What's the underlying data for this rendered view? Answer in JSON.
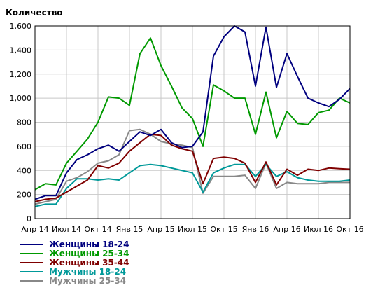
{
  "chart_data": {
    "type": "line",
    "title": "",
    "ylabel": "Количество",
    "xlabel": "",
    "ylim": [
      0,
      1600
    ],
    "yticks": [
      0,
      200,
      400,
      600,
      800,
      1000,
      1200,
      1400,
      1600
    ],
    "ytick_labels": [
      "0",
      "200",
      "400",
      "600",
      "800",
      "1,000",
      "1,200",
      "1,400",
      "1,600"
    ],
    "xtick_labels": [
      "Апр 14",
      "Июл 14",
      "Окт 14",
      "Янв 15",
      "Апр 15",
      "Июл 15",
      "Окт 15",
      "Янв 16",
      "Апр 16",
      "Июл 16",
      "Окт 16"
    ],
    "x": [
      "2014-04",
      "2014-05",
      "2014-06",
      "2014-07",
      "2014-08",
      "2014-09",
      "2014-10",
      "2014-11",
      "2014-12",
      "2015-01",
      "2015-02",
      "2015-03",
      "2015-04",
      "2015-05",
      "2015-06",
      "2015-07",
      "2015-08",
      "2015-09",
      "2015-10",
      "2015-11",
      "2015-12",
      "2016-01",
      "2016-02",
      "2016-03",
      "2016-04",
      "2016-05",
      "2016-06",
      "2016-07",
      "2016-08",
      "2016-09",
      "2016-10"
    ],
    "grid": true,
    "legend_position": "bottom-left",
    "series": [
      {
        "name": "Женщины 18-24",
        "color": "#00007f",
        "values": [
          160,
          190,
          190,
          380,
          490,
          530,
          580,
          610,
          560,
          640,
          720,
          690,
          740,
          630,
          590,
          600,
          720,
          1350,
          1510,
          1600,
          1550,
          1100,
          1590,
          1090,
          1370,
          1180,
          1000,
          960,
          930,
          990,
          1080
        ]
      },
      {
        "name": "Женщины 25-34",
        "color": "#009900",
        "values": [
          240,
          290,
          280,
          460,
          560,
          660,
          800,
          1010,
          1000,
          940,
          1370,
          1500,
          1270,
          1100,
          920,
          830,
          600,
          1110,
          1060,
          1000,
          1000,
          700,
          1050,
          670,
          890,
          790,
          780,
          880,
          900,
          1000,
          960
        ]
      },
      {
        "name": "Женщины 35-44",
        "color": "#7f0000",
        "values": [
          140,
          160,
          170,
          220,
          270,
          320,
          440,
          420,
          460,
          560,
          630,
          700,
          690,
          610,
          580,
          560,
          290,
          500,
          510,
          500,
          460,
          300,
          470,
          280,
          410,
          360,
          410,
          400,
          420,
          415,
          410
        ]
      },
      {
        "name": "Мужчины 18-24",
        "color": "#009999",
        "values": [
          100,
          120,
          120,
          250,
          330,
          330,
          320,
          330,
          320,
          380,
          440,
          450,
          440,
          420,
          400,
          380,
          220,
          380,
          420,
          450,
          450,
          350,
          450,
          350,
          390,
          340,
          320,
          310,
          310,
          310,
          320
        ]
      },
      {
        "name": "Мужчины 25-34",
        "color": "#888888",
        "values": [
          120,
          140,
          160,
          310,
          340,
          390,
          460,
          480,
          530,
          730,
          740,
          700,
          640,
          620,
          610,
          590,
          210,
          350,
          350,
          350,
          360,
          250,
          460,
          250,
          300,
          290,
          290,
          290,
          300,
          300,
          300
        ]
      }
    ]
  }
}
